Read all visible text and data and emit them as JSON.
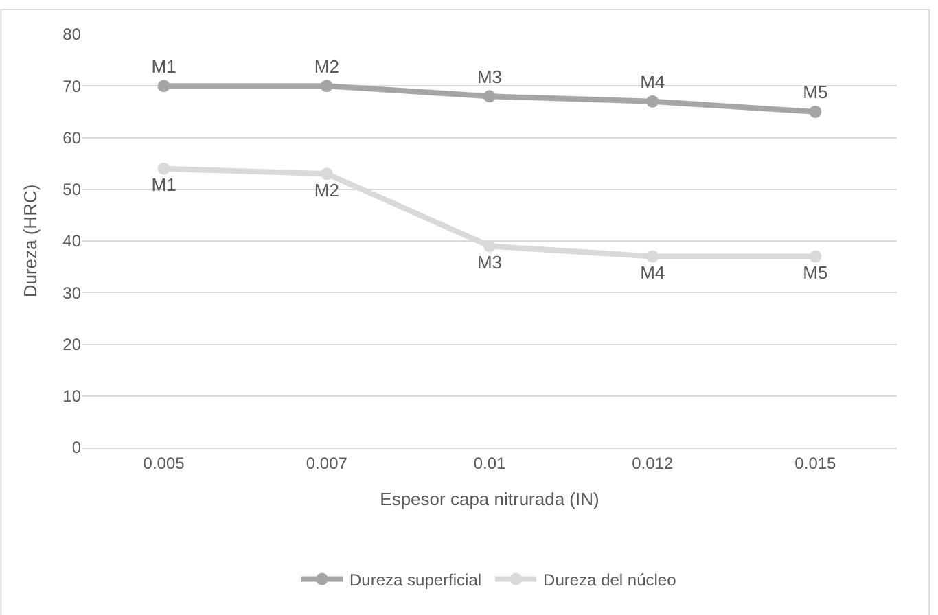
{
  "chart_data": {
    "type": "line",
    "xlabel": "Espesor capa nitrurada (IN)",
    "ylabel": "Dureza (HRC)",
    "categories": [
      "0.005",
      "0.007",
      "0.01",
      "0.012",
      "0.015"
    ],
    "series": [
      {
        "name": "Dureza superficial",
        "color": "#a5a5a5",
        "values": [
          70,
          70,
          68,
          67,
          65
        ],
        "value_labels": [
          "M1",
          "M2",
          "M3",
          "M4",
          "M5"
        ]
      },
      {
        "name": "Dureza del núcleo",
        "color": "#d9d9d9",
        "values": [
          54,
          53,
          39,
          37,
          37
        ],
        "value_labels": [
          "M1",
          "M2",
          "M3",
          "M4",
          "M5"
        ]
      }
    ],
    "ylim": [
      0,
      80
    ],
    "yticks": [
      0,
      10,
      20,
      30,
      40,
      50,
      60,
      70,
      80
    ],
    "grid": "y",
    "legend": "bottom",
    "marker": "circle",
    "line_style": "solid"
  }
}
